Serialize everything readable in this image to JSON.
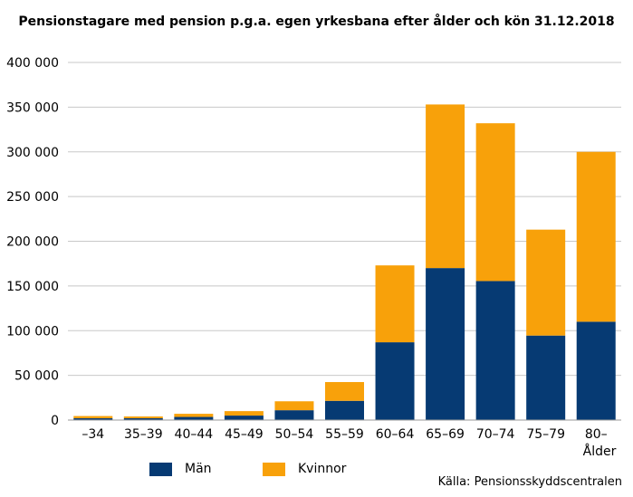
{
  "chart_data": {
    "type": "bar",
    "stacked": true,
    "title": "Pensionstagare med pension p.g.a. egen yrkesbana efter ålder och kön 31.12.2018",
    "xlabel": "Ålder",
    "ylabel": "",
    "categories": [
      "–34",
      "35–39",
      "40–44",
      "45–49",
      "50–54",
      "55–59",
      "60–64",
      "65–69",
      "70–74",
      "75–79",
      "80–"
    ],
    "series": [
      {
        "name": "Män",
        "color": "#063a73",
        "values": [
          2000,
          2000,
          3500,
          5000,
          11000,
          21500,
          87000,
          170000,
          155500,
          94500,
          110000
        ]
      },
      {
        "name": "Kvinnor",
        "color": "#f8a10a",
        "values": [
          2500,
          2000,
          3500,
          5000,
          10000,
          21000,
          86000,
          183000,
          176500,
          118500,
          190000
        ]
      }
    ],
    "yticks": [
      "0",
      "50 000",
      "100 000",
      "150 000",
      "200 000",
      "250 000",
      "300 000",
      "350 000",
      "400 000"
    ],
    "ylim": [
      0,
      400000
    ],
    "grid": true,
    "legend_position": "bottom-left",
    "source": "Källa: Pensionsskyddscentralen"
  }
}
